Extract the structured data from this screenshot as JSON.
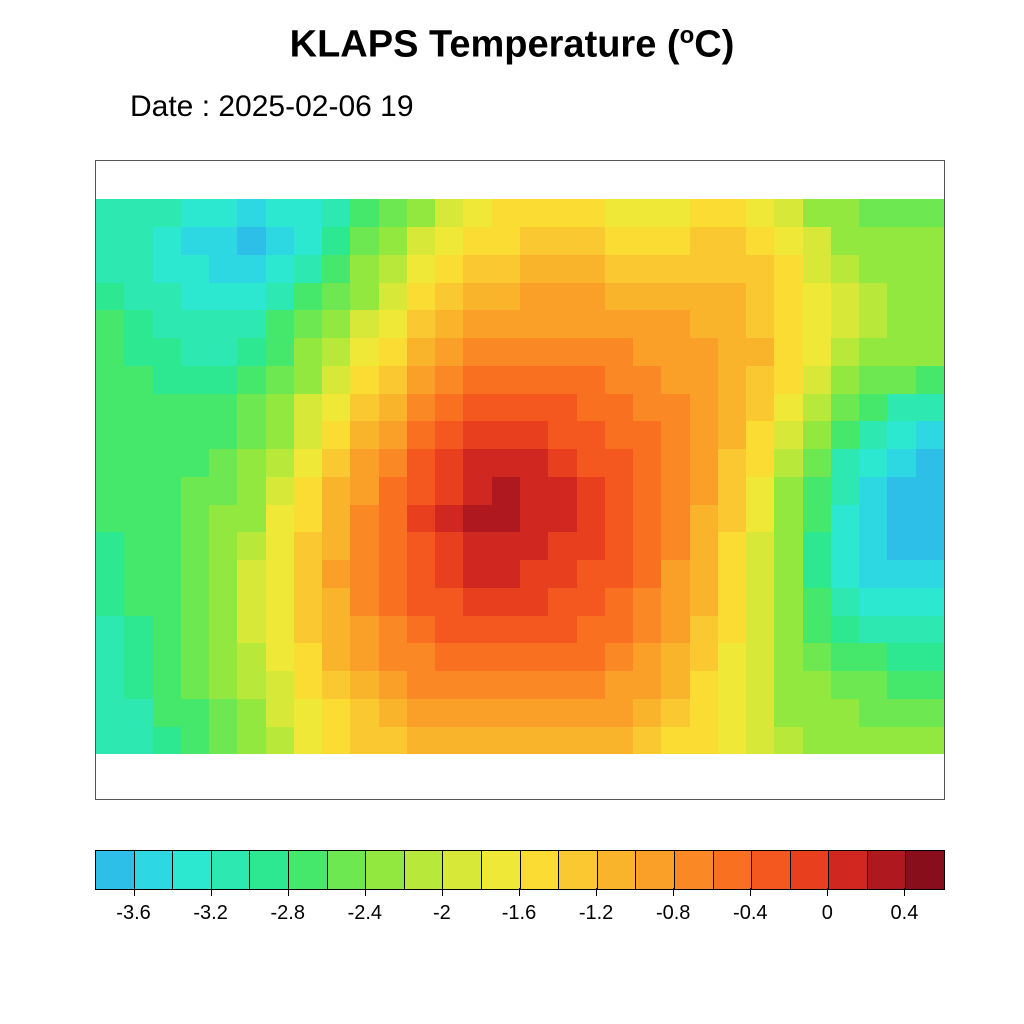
{
  "title_prefix": "KLAPS Temperature (",
  "title_unit_sup": "o",
  "title_unit_rest": "C)",
  "subtitle": "Date : 2025-02-06 19",
  "chart": {
    "type": "heatmap",
    "background_color": "#ffffff",
    "frame_border_color": "#555555",
    "inner_top_pad_pct": 6.0,
    "inner_bottom_pad_pct": 7.0,
    "n_cols": 30,
    "n_rows": 20,
    "colormap": [
      "#2dbfe8",
      "#2dd8e2",
      "#2de8d0",
      "#2de8b0",
      "#2de890",
      "#45e86a",
      "#6ee850",
      "#92e83e",
      "#b8e83a",
      "#d8e838",
      "#f0e836",
      "#fadc33",
      "#fac830",
      "#fab42c",
      "#faa028",
      "#fa8824",
      "#f87020",
      "#f4581e",
      "#e8401e",
      "#d02820",
      "#b01820",
      "#880e1c"
    ],
    "value_min": -3.8,
    "value_max": 0.6,
    "data": [
      [
        -3.0,
        -3.0,
        -3.1,
        -3.2,
        -3.3,
        -3.4,
        -3.3,
        -3.2,
        -3.0,
        -2.8,
        -2.5,
        -2.2,
        -2.0,
        -1.8,
        -1.6,
        -1.5,
        -1.5,
        -1.6,
        -1.7,
        -1.8,
        -1.7,
        -1.6,
        -1.6,
        -1.7,
        -1.9,
        -2.2,
        -2.4,
        -2.5,
        -2.5,
        -2.5
      ],
      [
        -3.0,
        -3.1,
        -3.2,
        -3.4,
        -3.5,
        -3.6,
        -3.4,
        -3.2,
        -2.9,
        -2.6,
        -2.3,
        -2.0,
        -1.8,
        -1.6,
        -1.5,
        -1.4,
        -1.4,
        -1.4,
        -1.5,
        -1.6,
        -1.5,
        -1.4,
        -1.4,
        -1.5,
        -1.7,
        -2.0,
        -2.2,
        -2.3,
        -2.4,
        -2.4
      ],
      [
        -3.0,
        -3.1,
        -3.2,
        -3.3,
        -3.4,
        -3.4,
        -3.2,
        -3.0,
        -2.7,
        -2.4,
        -2.1,
        -1.8,
        -1.6,
        -1.4,
        -1.3,
        -1.2,
        -1.2,
        -1.2,
        -1.3,
        -1.4,
        -1.3,
        -1.3,
        -1.3,
        -1.4,
        -1.6,
        -1.9,
        -2.1,
        -2.2,
        -2.3,
        -2.3
      ],
      [
        -2.9,
        -3.0,
        -3.1,
        -3.2,
        -3.3,
        -3.2,
        -3.0,
        -2.8,
        -2.5,
        -2.2,
        -1.9,
        -1.6,
        -1.4,
        -1.2,
        -1.1,
        -1.0,
        -1.0,
        -1.0,
        -1.1,
        -1.2,
        -1.2,
        -1.2,
        -1.2,
        -1.3,
        -1.5,
        -1.8,
        -2.0,
        -2.1,
        -2.2,
        -2.2
      ],
      [
        -2.8,
        -2.9,
        -3.0,
        -3.1,
        -3.1,
        -3.0,
        -2.8,
        -2.6,
        -2.3,
        -2.0,
        -1.7,
        -1.4,
        -1.2,
        -1.0,
        -0.9,
        -0.9,
        -0.9,
        -0.9,
        -1.0,
        -1.0,
        -1.0,
        -1.1,
        -1.1,
        -1.3,
        -1.5,
        -1.8,
        -2.0,
        -2.1,
        -2.2,
        -2.2
      ],
      [
        -2.8,
        -2.9,
        -2.9,
        -3.0,
        -3.0,
        -2.9,
        -2.7,
        -2.4,
        -2.1,
        -1.8,
        -1.5,
        -1.2,
        -1.0,
        -0.8,
        -0.7,
        -0.7,
        -0.7,
        -0.8,
        -0.8,
        -0.9,
        -0.9,
        -1.0,
        -1.1,
        -1.2,
        -1.5,
        -1.8,
        -2.1,
        -2.3,
        -2.4,
        -2.4
      ],
      [
        -2.8,
        -2.8,
        -2.9,
        -2.9,
        -2.9,
        -2.8,
        -2.5,
        -2.2,
        -1.9,
        -1.6,
        -1.3,
        -1.0,
        -0.8,
        -0.6,
        -0.5,
        -0.5,
        -0.5,
        -0.6,
        -0.7,
        -0.8,
        -0.9,
        -1.0,
        -1.1,
        -1.3,
        -1.6,
        -1.9,
        -2.2,
        -2.5,
        -2.6,
        -2.7
      ],
      [
        -2.8,
        -2.8,
        -2.8,
        -2.8,
        -2.8,
        -2.6,
        -2.3,
        -2.0,
        -1.7,
        -1.4,
        -1.1,
        -0.8,
        -0.6,
        -0.4,
        -0.3,
        -0.3,
        -0.4,
        -0.5,
        -0.6,
        -0.7,
        -0.8,
        -1.0,
        -1.1,
        -1.4,
        -1.7,
        -2.1,
        -2.5,
        -2.8,
        -3.0,
        -3.1
      ],
      [
        -2.8,
        -2.8,
        -2.8,
        -2.8,
        -2.7,
        -2.5,
        -2.2,
        -1.9,
        -1.5,
        -1.2,
        -0.9,
        -0.6,
        -0.4,
        -0.2,
        -0.1,
        -0.2,
        -0.3,
        -0.4,
        -0.5,
        -0.6,
        -0.8,
        -1.0,
        -1.2,
        -1.5,
        -1.9,
        -2.3,
        -2.8,
        -3.1,
        -3.3,
        -3.4
      ],
      [
        -2.8,
        -2.8,
        -2.8,
        -2.7,
        -2.6,
        -2.4,
        -2.1,
        -1.7,
        -1.4,
        -1.0,
        -0.7,
        -0.4,
        -0.2,
        0.0,
        0.1,
        0.0,
        -0.1,
        -0.3,
        -0.4,
        -0.6,
        -0.8,
        -1.0,
        -1.3,
        -1.6,
        -2.1,
        -2.6,
        -3.0,
        -3.3,
        -3.5,
        -3.6
      ],
      [
        -2.8,
        -2.8,
        -2.7,
        -2.6,
        -2.5,
        -2.3,
        -1.9,
        -1.6,
        -1.2,
        -0.9,
        -0.6,
        -0.3,
        -0.1,
        0.1,
        0.2,
        0.1,
        0.0,
        -0.2,
        -0.3,
        -0.5,
        -0.8,
        -1.0,
        -1.3,
        -1.7,
        -2.2,
        -2.7,
        -3.1,
        -3.4,
        -3.6,
        -3.7
      ],
      [
        -2.8,
        -2.8,
        -2.7,
        -2.6,
        -2.4,
        -2.2,
        -1.8,
        -1.5,
        -1.1,
        -0.8,
        -0.5,
        -0.2,
        0.0,
        0.2,
        0.2,
        0.1,
        0.0,
        -0.2,
        -0.3,
        -0.5,
        -0.8,
        -1.1,
        -1.4,
        -1.8,
        -2.3,
        -2.8,
        -3.2,
        -3.5,
        -3.7,
        -3.7
      ],
      [
        -2.9,
        -2.8,
        -2.7,
        -2.6,
        -2.4,
        -2.1,
        -1.8,
        -1.4,
        -1.1,
        -0.8,
        -0.5,
        -0.3,
        -0.1,
        0.1,
        0.1,
        0.0,
        -0.1,
        -0.2,
        -0.4,
        -0.6,
        -0.8,
        -1.1,
        -1.5,
        -1.9,
        -2.4,
        -2.9,
        -3.3,
        -3.5,
        -3.6,
        -3.7
      ],
      [
        -2.9,
        -2.8,
        -2.7,
        -2.5,
        -2.3,
        -2.0,
        -1.7,
        -1.4,
        -1.0,
        -0.8,
        -0.5,
        -0.3,
        -0.2,
        0.0,
        0.0,
        -0.1,
        -0.2,
        -0.3,
        -0.4,
        -0.6,
        -0.9,
        -1.2,
        -1.5,
        -2.0,
        -2.4,
        -2.9,
        -3.2,
        -3.4,
        -3.5,
        -3.5
      ],
      [
        -2.9,
        -2.8,
        -2.7,
        -2.5,
        -2.3,
        -2.0,
        -1.7,
        -1.4,
        -1.1,
        -0.8,
        -0.6,
        -0.4,
        -0.3,
        -0.2,
        -0.2,
        -0.2,
        -0.3,
        -0.4,
        -0.5,
        -0.7,
        -0.9,
        -1.2,
        -1.6,
        -2.0,
        -2.4,
        -2.8,
        -3.1,
        -3.2,
        -3.3,
        -3.3
      ],
      [
        -3.0,
        -2.9,
        -2.7,
        -2.5,
        -2.3,
        -2.0,
        -1.7,
        -1.4,
        -1.1,
        -0.9,
        -0.7,
        -0.5,
        -0.4,
        -0.3,
        -0.3,
        -0.3,
        -0.4,
        -0.5,
        -0.6,
        -0.8,
        -1.0,
        -1.3,
        -1.6,
        -2.0,
        -2.3,
        -2.7,
        -2.9,
        -3.0,
        -3.1,
        -3.1
      ],
      [
        -3.0,
        -2.9,
        -2.8,
        -2.6,
        -2.3,
        -2.1,
        -1.8,
        -1.5,
        -1.2,
        -1.0,
        -0.8,
        -0.7,
        -0.6,
        -0.5,
        -0.5,
        -0.5,
        -0.5,
        -0.6,
        -0.7,
        -0.9,
        -1.1,
        -1.4,
        -1.7,
        -2.0,
        -2.3,
        -2.6,
        -2.7,
        -2.8,
        -2.9,
        -2.9
      ],
      [
        -3.0,
        -2.9,
        -2.8,
        -2.6,
        -2.4,
        -2.1,
        -1.9,
        -1.6,
        -1.3,
        -1.1,
        -1.0,
        -0.8,
        -0.7,
        -0.7,
        -0.7,
        -0.7,
        -0.7,
        -0.8,
        -0.9,
        -1.0,
        -1.2,
        -1.5,
        -1.7,
        -2.0,
        -2.2,
        -2.4,
        -2.6,
        -2.6,
        -2.7,
        -2.7
      ],
      [
        -3.1,
        -3.0,
        -2.8,
        -2.7,
        -2.5,
        -2.2,
        -2.0,
        -1.7,
        -1.5,
        -1.3,
        -1.1,
        -1.0,
        -0.9,
        -0.9,
        -0.9,
        -0.9,
        -0.9,
        -0.9,
        -1.0,
        -1.2,
        -1.3,
        -1.5,
        -1.8,
        -2.0,
        -2.2,
        -2.3,
        -2.4,
        -2.5,
        -2.5,
        -2.5
      ],
      [
        -3.1,
        -3.0,
        -2.9,
        -2.7,
        -2.5,
        -2.3,
        -2.1,
        -1.8,
        -1.6,
        -1.4,
        -1.3,
        -1.2,
        -1.1,
        -1.1,
        -1.1,
        -1.1,
        -1.1,
        -1.1,
        -1.2,
        -1.3,
        -1.5,
        -1.6,
        -1.8,
        -2.0,
        -2.1,
        -2.2,
        -2.3,
        -2.3,
        -2.4,
        -2.4
      ]
    ]
  },
  "colorbar": {
    "border_color": "#000000",
    "n_segments": 22,
    "colors": [
      "#2dbfe8",
      "#2dd8e2",
      "#2de8d0",
      "#2de8b0",
      "#2de890",
      "#45e86a",
      "#6ee850",
      "#92e83e",
      "#b8e83a",
      "#d8e838",
      "#f0e836",
      "#fadc33",
      "#fac830",
      "#fab42c",
      "#faa028",
      "#fa8824",
      "#f87020",
      "#f4581e",
      "#e8401e",
      "#d02820",
      "#b01820",
      "#880e1c"
    ],
    "tick_labels": [
      "-3.6",
      "-3.2",
      "-2.8",
      "-2.4",
      "-2",
      "-1.6",
      "-1.2",
      "-0.8",
      "-0.4",
      "0",
      "0.4"
    ],
    "tick_positions_seg": [
      1,
      3,
      5,
      7,
      9,
      11,
      13,
      15,
      17,
      19,
      21
    ],
    "tick_label_fontsize": 20
  }
}
